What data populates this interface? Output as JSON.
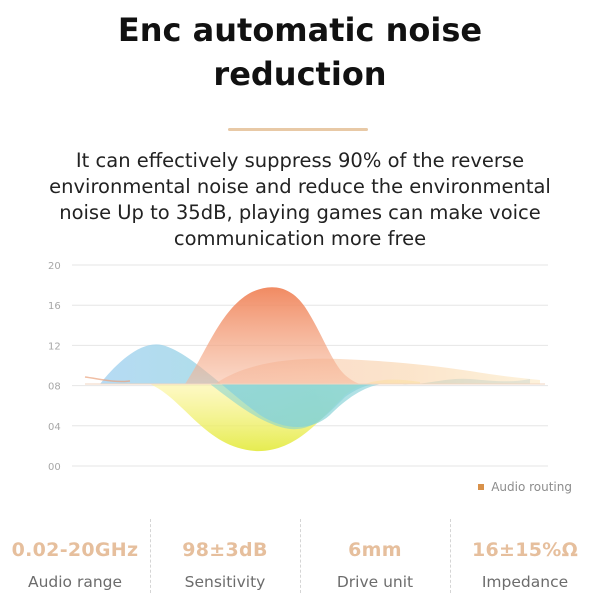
{
  "header": {
    "title_line1": "Enc automatic noise",
    "title_line2": "reduction"
  },
  "description": {
    "line1": "It can effectively suppress 90% of the reverse",
    "line2": "environmental noise and reduce the environmental",
    "line3": "noise Up to 35dB, playing games can make voice",
    "line4": "communication more free"
  },
  "colors": {
    "accent_rule": "#e8c9a6",
    "spec_value": "#e6bf9d",
    "legend_swatch": "#d8914a",
    "grid": "#e6e6e6"
  },
  "chart_data": {
    "type": "area",
    "y_ticks": [
      "20",
      "16",
      "12",
      "08",
      "04",
      "00"
    ],
    "ylim": [
      0,
      20
    ],
    "grid": true,
    "legend_position": "bottom-right",
    "legend": [
      "Audio routing"
    ]
  },
  "specs": [
    {
      "value": "0.02-20GHz",
      "label": "Audio range"
    },
    {
      "value": "98±3dB",
      "label": "Sensitivity"
    },
    {
      "value": "6mm",
      "label": "Drive unit"
    },
    {
      "value": "16±15%Ω",
      "label": "Impedance"
    }
  ]
}
